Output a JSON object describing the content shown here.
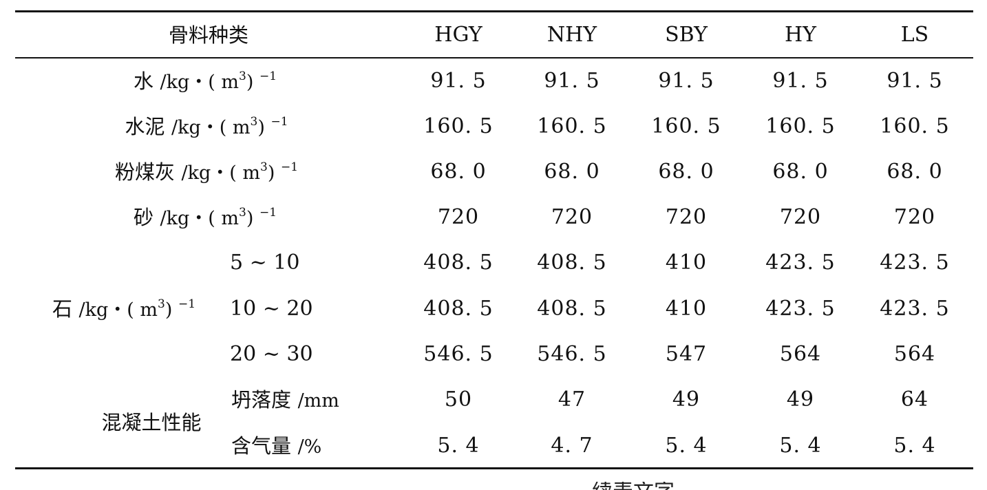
{
  "header": {
    "category": "骨料种类",
    "columns": [
      "HGY",
      "NHY",
      "SBY",
      "HY",
      "LS"
    ]
  },
  "rows": [
    {
      "label_cn": "水",
      "unit_pre": "/kg・( m",
      "unit_exp": "3",
      "unit_post": ") ",
      "unit_exp2": "−1",
      "values": [
        "91. 5",
        "91. 5",
        "91. 5",
        "91. 5",
        "91. 5"
      ]
    },
    {
      "label_cn": "水泥",
      "unit_pre": "/kg・( m",
      "unit_exp": "3",
      "unit_post": ") ",
      "unit_exp2": "−1",
      "values": [
        "160. 5",
        "160. 5",
        "160. 5",
        "160. 5",
        "160. 5"
      ]
    },
    {
      "label_cn": "粉煤灰",
      "unit_pre": "/kg・( m",
      "unit_exp": "3",
      "unit_post": ") ",
      "unit_exp2": "−1",
      "values": [
        "68. 0",
        "68. 0",
        "68. 0",
        "68. 0",
        "68. 0"
      ]
    },
    {
      "label_cn": "砂",
      "unit_pre": "/kg・( m",
      "unit_exp": "3",
      "unit_post": ") ",
      "unit_exp2": "−1",
      "values": [
        "720",
        "720",
        "720",
        "720",
        "720"
      ]
    }
  ],
  "stone": {
    "label_cn": "石",
    "unit_pre": "/kg・( m",
    "unit_exp": "3",
    "unit_post": ") ",
    "unit_exp2": "−1",
    "subrows": [
      {
        "range": "5 ~ 10",
        "values": [
          "408. 5",
          "408. 5",
          "410",
          "423. 5",
          "423. 5"
        ]
      },
      {
        "range": "10 ~ 20",
        "values": [
          "408. 5",
          "408. 5",
          "410",
          "423. 5",
          "423. 5"
        ]
      },
      {
        "range": "20 ~ 30",
        "values": [
          "546. 5",
          "546. 5",
          "547",
          "564",
          "564"
        ]
      }
    ]
  },
  "performance": {
    "label_cn": "混凝土性能",
    "subrows": [
      {
        "label_cn": "坍落度",
        "unit": "/mm",
        "values": [
          "50",
          "47",
          "49",
          "49",
          "64"
        ]
      },
      {
        "label_cn": "含气量",
        "unit": "/%",
        "values": [
          "5. 4",
          "4. 7",
          "5. 4",
          "5. 4",
          "5. 4"
        ]
      }
    ]
  },
  "footer_partial": "续表文字"
}
